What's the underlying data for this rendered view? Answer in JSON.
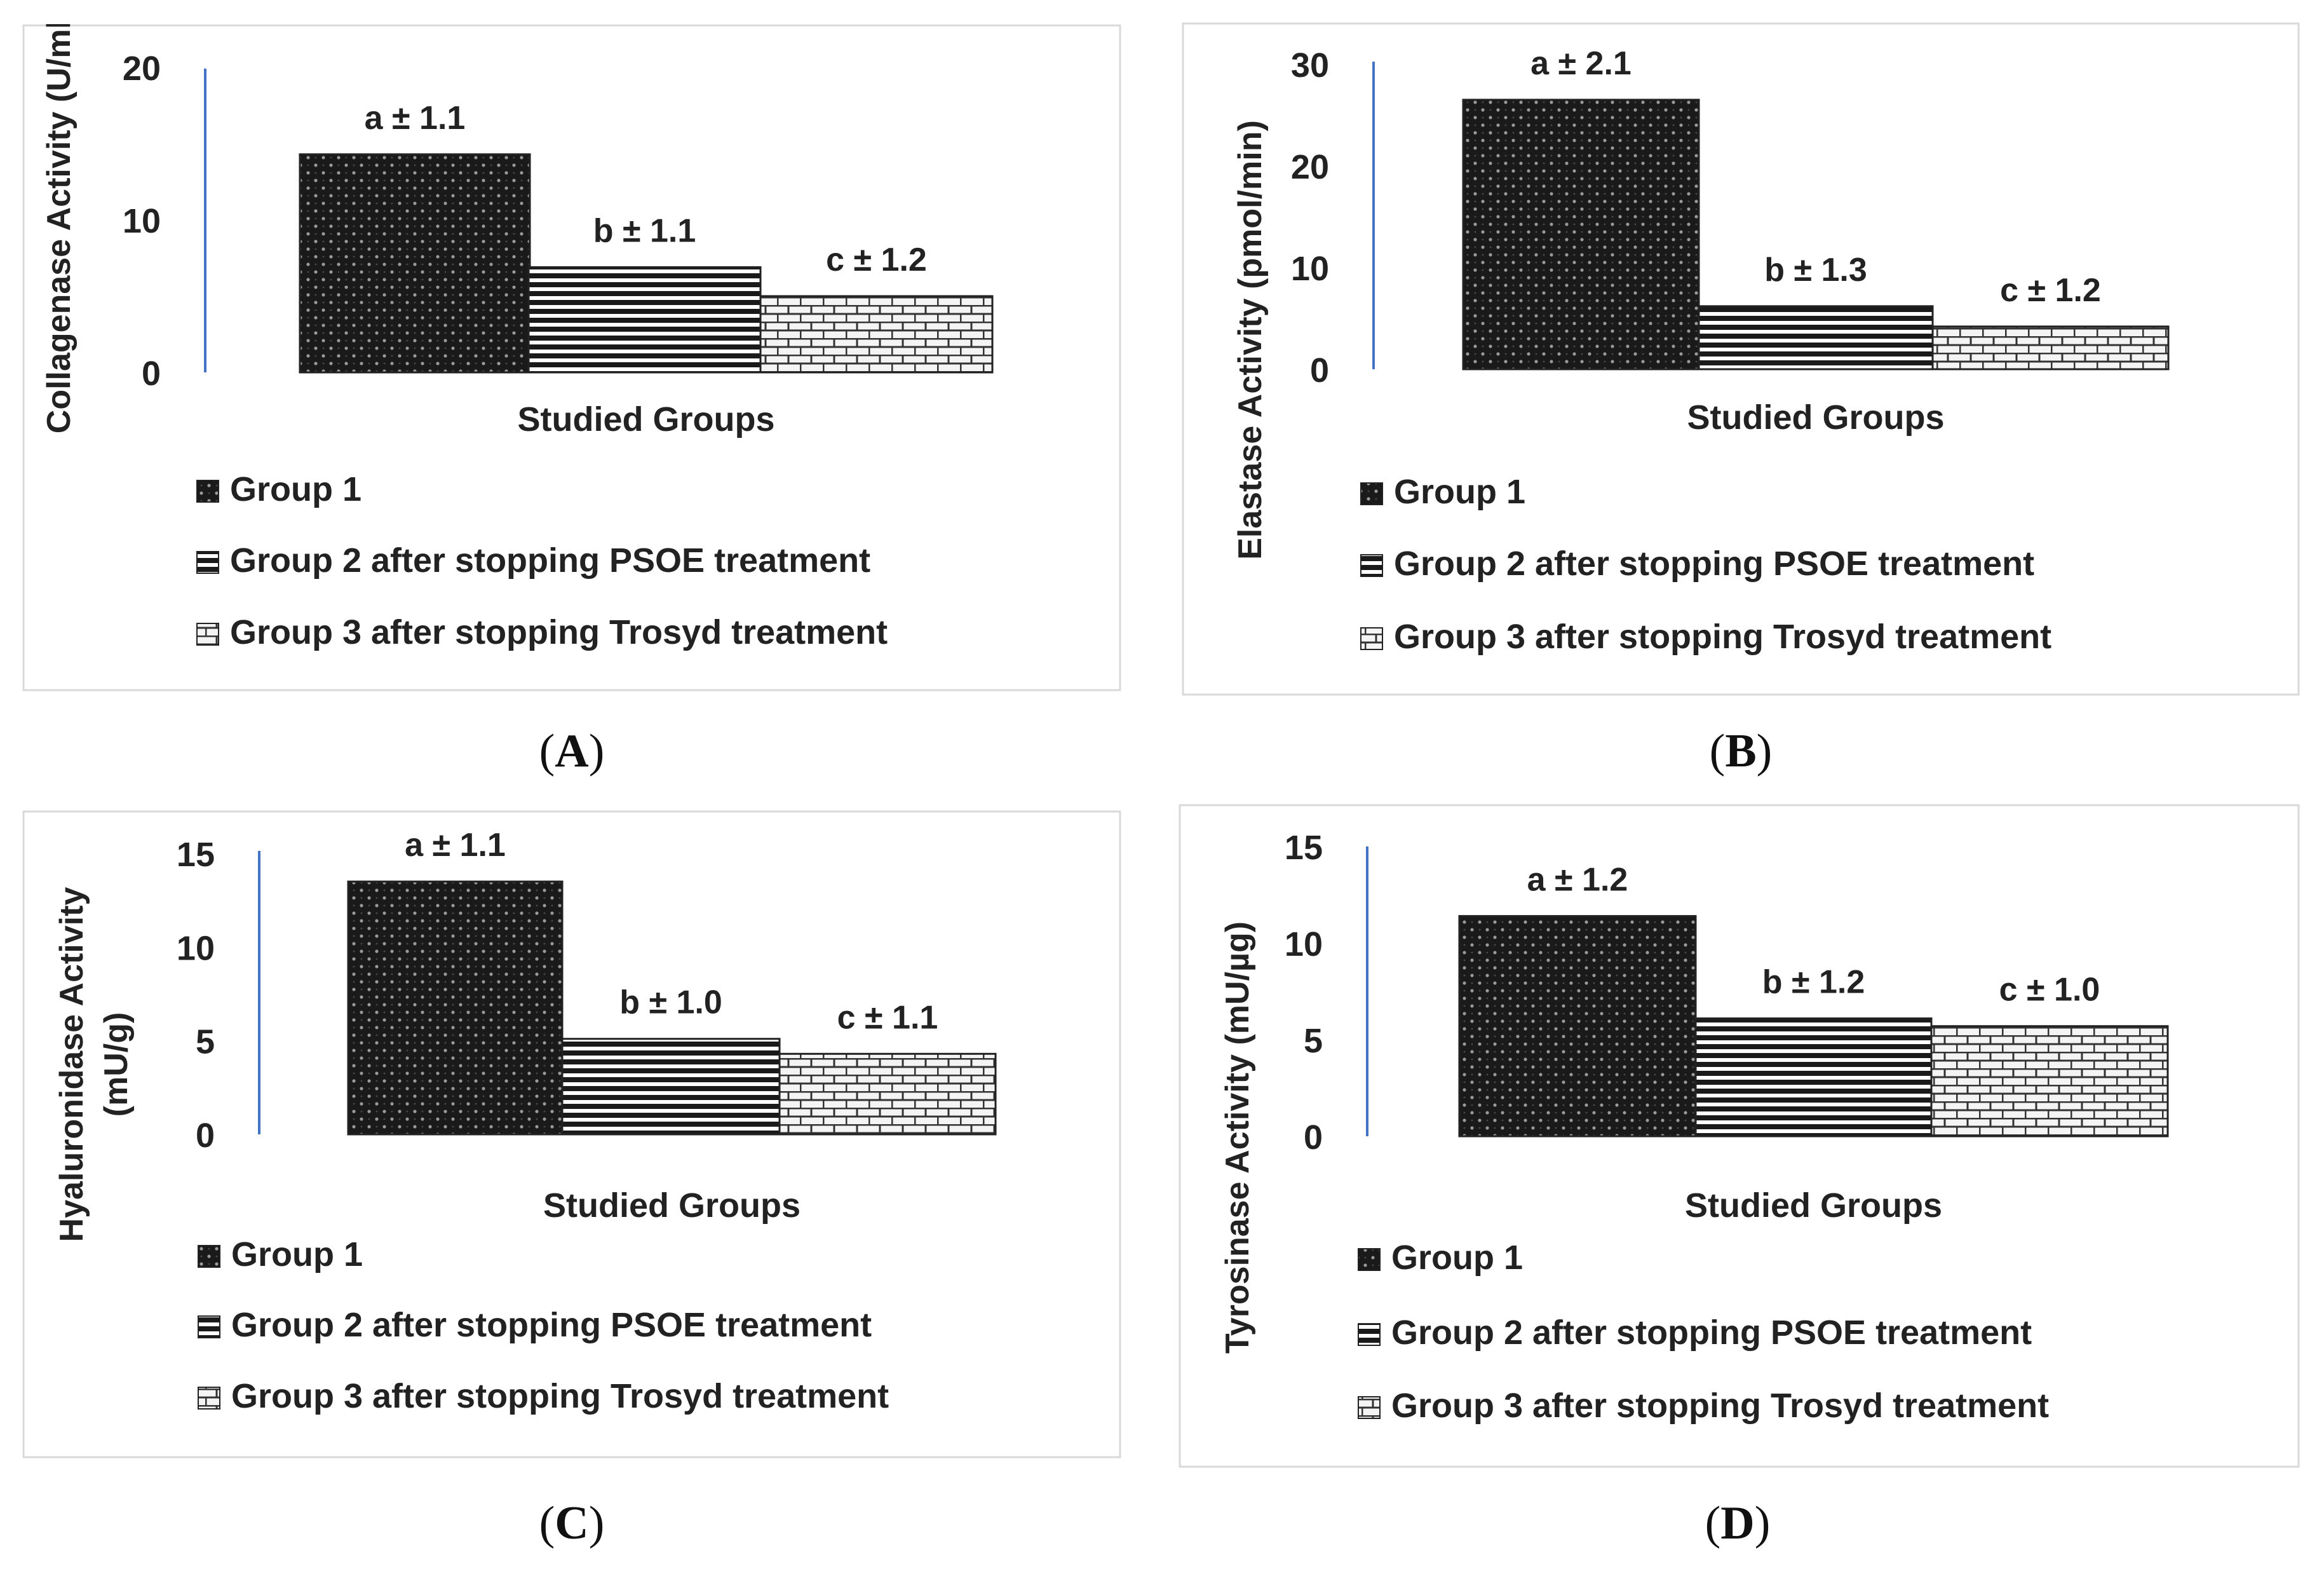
{
  "figure": {
    "legend_labels": [
      "Group 1",
      "Group 2 after stopping PSOE treatment",
      "Group 3 after stopping Trosyd treatment"
    ],
    "xlabel": "Studied Groups",
    "colors": {
      "axis_line": "#4472c4",
      "frame": "#d9d9d9",
      "bar_dark": "#1a1a1a",
      "text": "#222222"
    }
  },
  "panels": [
    {
      "caption": "A"
    },
    {
      "caption": "B"
    },
    {
      "caption": "C"
    },
    {
      "caption": "D"
    }
  ],
  "chart_data": [
    {
      "type": "bar",
      "title": "",
      "xlabel": "Studied Groups",
      "ylabel": "Collagenase Activity (U/ml)",
      "categories": [
        "Group 1",
        "Group 2 after stopping PSOE treatment",
        "Group 3 after stopping Trosyd treatment"
      ],
      "values": [
        14.3,
        6.9,
        5.0
      ],
      "data_labels": [
        "a ± 1.1",
        "b ± 1.1",
        "c ± 1.2"
      ],
      "ylim": [
        0,
        20
      ],
      "yticks": [
        "0",
        "10",
        "20"
      ]
    },
    {
      "type": "bar",
      "title": "",
      "xlabel": "Studied Groups",
      "ylabel": "Elastase Activity (pmol/min)",
      "categories": [
        "Group 1",
        "Group 2 after stopping PSOE treatment",
        "Group 3 after stopping Trosyd treatment"
      ],
      "values": [
        26.5,
        6.2,
        4.2
      ],
      "data_labels": [
        "a ± 2.1",
        "b ± 1.3",
        "c ± 1.2"
      ],
      "ylim": [
        0,
        30
      ],
      "yticks": [
        "0",
        "10",
        "20",
        "30"
      ]
    },
    {
      "type": "bar",
      "title": "",
      "xlabel": "Studied Groups",
      "ylabel": "Hyaluronidase Activity (mU/g)",
      "ylabel_lines": [
        "Hyaluronidase Activity",
        "(mU/g)"
      ],
      "categories": [
        "Group 1",
        "Group 2 after stopping PSOE treatment",
        "Group 3 after stopping Trosyd treatment"
      ],
      "values": [
        13.5,
        5.1,
        4.3
      ],
      "data_labels": [
        "a ± 1.1",
        "b ± 1.0",
        "c ± 1.1"
      ],
      "ylim": [
        0,
        15
      ],
      "yticks": [
        "0",
        "5",
        "10",
        "15"
      ]
    },
    {
      "type": "bar",
      "title": "",
      "xlabel": "Studied Groups",
      "ylabel": "Tyrosinase Activity (mU/µg)",
      "categories": [
        "Group 1",
        "Group 2 after stopping PSOE treatment",
        "Group 3 after stopping Trosyd treatment"
      ],
      "values": [
        11.4,
        6.1,
        5.7
      ],
      "data_labels": [
        "a ± 1.2",
        "b ± 1.2",
        "c ± 1.0"
      ],
      "ylim": [
        0,
        15
      ],
      "yticks": [
        "0",
        "5",
        "10",
        "15"
      ]
    }
  ]
}
